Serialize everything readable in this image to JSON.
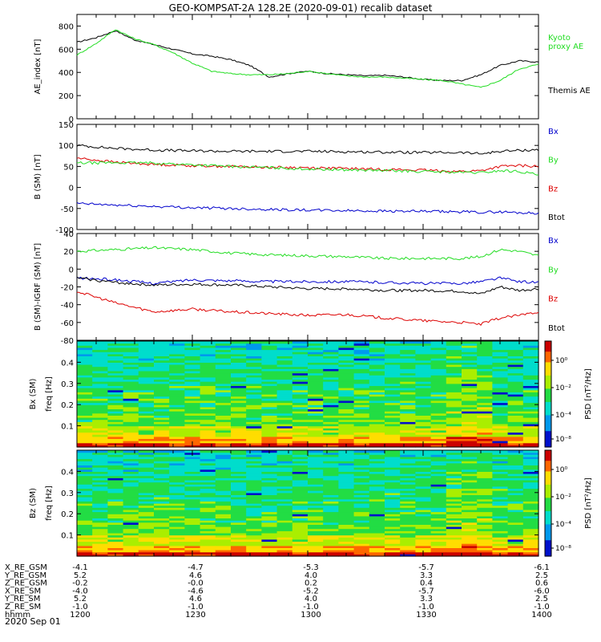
{
  "title": "GEO-KOMPSAT-2A 128.2E (2020-09-01) recalib dataset",
  "colors": {
    "black": "#000000",
    "green": "#22dd22",
    "red": "#dd0000",
    "blue": "#0000cc"
  },
  "chart_data": [
    {
      "type": "line",
      "id": "ae",
      "ylabel": "AE_index [nT]",
      "ylim": [
        0,
        900
      ],
      "yticks": [
        0,
        200,
        400,
        600,
        800
      ],
      "legend": [
        {
          "name": "Kyoto proxy AE",
          "lines": [
            "Kyoto",
            "proxy AE"
          ],
          "color": "green"
        },
        {
          "name": "Themis AE",
          "lines": [
            "Themis AE"
          ],
          "color": "black"
        }
      ],
      "x": [
        0,
        5,
        10,
        15,
        20,
        25,
        30,
        35,
        40,
        45,
        50,
        55,
        60,
        65,
        70,
        75,
        80,
        85,
        90,
        95,
        100,
        105,
        110,
        115,
        120
      ],
      "series": [
        {
          "name": "Themis AE",
          "color": "black",
          "values": [
            660,
            700,
            760,
            680,
            640,
            600,
            560,
            540,
            510,
            460,
            360,
            390,
            410,
            390,
            380,
            370,
            375,
            360,
            340,
            330,
            330,
            380,
            460,
            500,
            490
          ]
        },
        {
          "name": "Kyoto proxy AE",
          "color": "green",
          "values": [
            550,
            650,
            770,
            690,
            640,
            570,
            480,
            410,
            390,
            380,
            380,
            390,
            410,
            390,
            370,
            360,
            360,
            350,
            340,
            330,
            300,
            270,
            330,
            430,
            470
          ]
        }
      ]
    },
    {
      "type": "line",
      "id": "bsm",
      "ylabel": "B (SM) [nT]",
      "ylim": [
        -100,
        150
      ],
      "yticks": [
        -100,
        -50,
        0,
        50,
        100,
        150
      ],
      "legend": [
        {
          "name": "Bx",
          "lines": [
            "Bx"
          ],
          "color": "blue"
        },
        {
          "name": "By",
          "lines": [
            "By"
          ],
          "color": "green"
        },
        {
          "name": "Bz",
          "lines": [
            "Bz"
          ],
          "color": "red"
        },
        {
          "name": "Btot",
          "lines": [
            "Btot"
          ],
          "color": "black"
        }
      ],
      "x": [
        0,
        10,
        20,
        30,
        40,
        50,
        60,
        70,
        80,
        90,
        100,
        105,
        110,
        115,
        120
      ],
      "series": [
        {
          "name": "Btot",
          "color": "black",
          "values": [
            100,
            93,
            89,
            87,
            86,
            86,
            86,
            85,
            84,
            83,
            83,
            80,
            86,
            88,
            90
          ]
        },
        {
          "name": "Bz",
          "color": "red",
          "values": [
            70,
            60,
            55,
            52,
            50,
            48,
            47,
            45,
            43,
            41,
            38,
            40,
            50,
            52,
            50
          ]
        },
        {
          "name": "By",
          "color": "green",
          "values": [
            58,
            59,
            58,
            54,
            50,
            47,
            44,
            42,
            40,
            38,
            36,
            35,
            40,
            38,
            30
          ]
        },
        {
          "name": "Bx",
          "color": "blue",
          "values": [
            -38,
            -42,
            -45,
            -48,
            -50,
            -52,
            -54,
            -55,
            -56,
            -57,
            -58,
            -59,
            -58,
            -60,
            -61
          ]
        }
      ]
    },
    {
      "type": "line",
      "id": "bdiff",
      "ylabel": "B (SM)-IGRF (SM) [nT]",
      "ylim": [
        -80,
        40
      ],
      "yticks": [
        -80,
        -60,
        -40,
        -20,
        0,
        20,
        40
      ],
      "legend": [
        {
          "name": "Bx",
          "lines": [
            "Bx"
          ],
          "color": "blue"
        },
        {
          "name": "By",
          "lines": [
            "By"
          ],
          "color": "green"
        },
        {
          "name": "Bz",
          "lines": [
            "Bz"
          ],
          "color": "red"
        },
        {
          "name": "Btot",
          "lines": [
            "Btot"
          ],
          "color": "black"
        }
      ],
      "x": [
        0,
        10,
        20,
        30,
        40,
        50,
        60,
        70,
        80,
        90,
        100,
        105,
        110,
        115,
        120
      ],
      "series": [
        {
          "name": "By",
          "color": "green",
          "values": [
            20,
            22,
            24,
            22,
            18,
            16,
            15,
            14,
            12,
            12,
            12,
            14,
            22,
            20,
            15
          ]
        },
        {
          "name": "Bx",
          "color": "blue",
          "values": [
            -10,
            -12,
            -16,
            -12,
            -13,
            -14,
            -14,
            -14,
            -15,
            -16,
            -16,
            -14,
            -10,
            -14,
            -15
          ]
        },
        {
          "name": "Btot",
          "color": "black",
          "values": [
            -10,
            -15,
            -18,
            -17,
            -18,
            -20,
            -22,
            -22,
            -24,
            -24,
            -25,
            -28,
            -20,
            -24,
            -22
          ]
        },
        {
          "name": "Bz",
          "color": "red",
          "values": [
            -25,
            -38,
            -48,
            -45,
            -48,
            -50,
            -52,
            -51,
            -55,
            -58,
            -60,
            -62,
            -55,
            -52,
            -48
          ]
        }
      ]
    },
    {
      "type": "heatmap",
      "id": "bxspec",
      "ylabel": "Bx (SM)",
      "ylabel2": "freq [Hz]",
      "ylim": [
        0,
        0.5
      ],
      "yticks": [
        0.1,
        0.2,
        0.3,
        0.4
      ],
      "colorbar_label": "PSD [nT²/Hz]",
      "colorbar_range": [
        -9,
        2
      ],
      "colorbar_ticks": [
        "10⁰",
        "10⁻²",
        "10⁻⁴",
        "10⁻⁸"
      ]
    },
    {
      "type": "heatmap",
      "id": "bzspec",
      "ylabel": "Bz (SM)",
      "ylabel2": "freq [Hz]",
      "ylim": [
        0,
        0.5
      ],
      "yticks": [
        0.1,
        0.2,
        0.3,
        0.4
      ],
      "colorbar_label": "PSD [nT²/Hz]",
      "colorbar_range": [
        -9,
        2
      ],
      "colorbar_ticks": [
        "10⁰",
        "10⁻²",
        "10⁻⁴",
        "10⁻⁸"
      ]
    }
  ],
  "ephemeris": {
    "labels": [
      "X_RE_GSM",
      "Y_RE_GSM",
      "Z_RE_GSM",
      "X_RE_SM",
      "Y_RE_SM",
      "Z_RE_SM",
      "hhmm"
    ],
    "columns": [
      [
        "-4.1",
        "5.2",
        "-0.2",
        "-4.0",
        "5.2",
        "-1.0",
        "1200"
      ],
      [
        "-4.7",
        "4.6",
        "-0.0",
        "-4.6",
        "4.6",
        "-1.0",
        "1230"
      ],
      [
        "-5.3",
        "4.0",
        "0.2",
        "-5.2",
        "4.0",
        "-1.0",
        "1300"
      ],
      [
        "-5.7",
        "3.3",
        "0.4",
        "-5.7",
        "3.3",
        "-1.0",
        "1330"
      ],
      [
        "-6.1",
        "2.5",
        "0.6",
        "-6.0",
        "2.5",
        "-1.0",
        "1400"
      ]
    ],
    "date": "2020 Sep 01"
  }
}
